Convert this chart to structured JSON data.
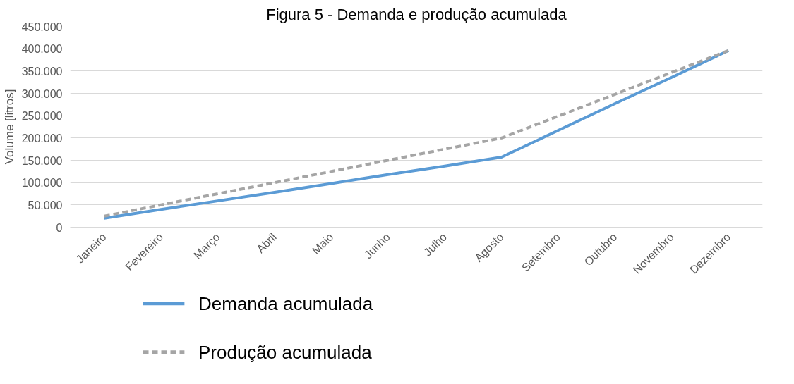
{
  "chart_data": {
    "type": "line",
    "title": "Figura 5 - Demanda e produção acumulada",
    "ylabel": "Volume [litros]",
    "categories": [
      "Janeiro",
      "Fevereiro",
      "Março",
      "Abril",
      "Maio",
      "Junho",
      "Julho",
      "Agosto",
      "Setembro",
      "Outubro",
      "Novembro",
      "Dezembro"
    ],
    "series": [
      {
        "name": "Demanda acumulada",
        "color": "#5b9bd5",
        "line_style": "solid",
        "values": [
          20000,
          40000,
          59000,
          78000,
          98000,
          118000,
          137000,
          157000,
          217000,
          277000,
          336000,
          396000
        ]
      },
      {
        "name": "Produção acumulada",
        "color": "#a5a5a5",
        "line_style": "dashed",
        "values": [
          25000,
          50000,
          75000,
          100000,
          125000,
          150000,
          175000,
          200000,
          249000,
          298000,
          347000,
          396000
        ]
      }
    ],
    "ylim": [
      0,
      450000
    ],
    "yticks": [
      {
        "value": 0,
        "label": "0"
      },
      {
        "value": 50000,
        "label": "50.000"
      },
      {
        "value": 100000,
        "label": "100.000"
      },
      {
        "value": 150000,
        "label": "150.000"
      },
      {
        "value": 200000,
        "label": "200.000"
      },
      {
        "value": 250000,
        "label": "250.000"
      },
      {
        "value": 300000,
        "label": "300.000"
      },
      {
        "value": 350000,
        "label": "350.000"
      },
      {
        "value": 400000,
        "label": "400.000"
      },
      {
        "value": 450000,
        "label": "450.000"
      }
    ],
    "grid": "y",
    "legend": "bottom",
    "marker": "none"
  }
}
